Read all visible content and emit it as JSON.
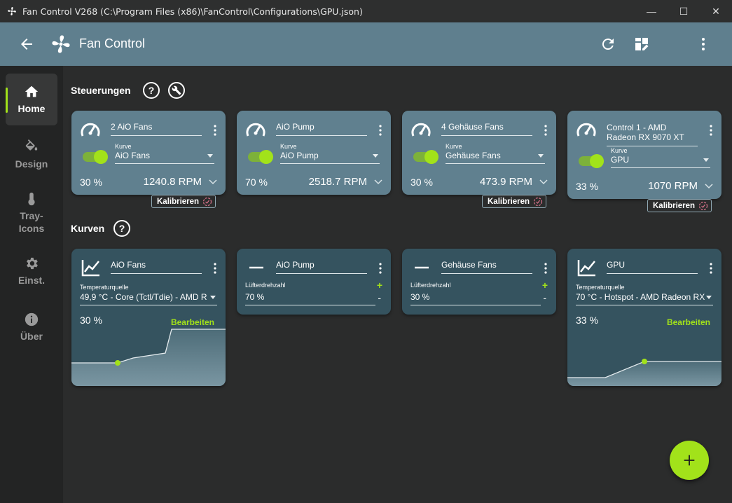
{
  "window": {
    "title": "Fan Control V268 (C:\\Program Files (x86)\\FanControl\\Configurations\\GPU.json)",
    "minimize": "—",
    "maximize": "☐",
    "close": "✕"
  },
  "appbar": {
    "title": "Fan Control",
    "icons": [
      "back-arrow-icon",
      "fan-logo-icon",
      "refresh-icon",
      "dashboard-edit-icon",
      "more-vertical-icon"
    ]
  },
  "sidebar": {
    "items": [
      {
        "label": "Home",
        "icon": "home-icon",
        "active": true
      },
      {
        "label": "Design",
        "icon": "paint-bucket-icon",
        "active": false
      },
      {
        "label": "Tray-\nIcons",
        "icon": "thermometer-icon",
        "active": false
      },
      {
        "label": "Einst.",
        "icon": "gear-icon",
        "active": false
      },
      {
        "label": "Über",
        "icon": "info-icon",
        "active": false
      }
    ]
  },
  "controls": {
    "title": "Steuerungen",
    "help": "?",
    "kurve_label": "Kurve",
    "calibrate_label": "Kalibrieren",
    "cards": [
      {
        "name": "2 AiO Fans",
        "curve": "AiO Fans",
        "percent": "30 %",
        "rpm": "1240.8 RPM",
        "enabled": true
      },
      {
        "name": "AiO Pump",
        "curve": "AiO Pump",
        "percent": "70 %",
        "rpm": "2518.7 RPM",
        "enabled": true
      },
      {
        "name": "4 Gehäuse Fans",
        "curve": "Gehäuse Fans",
        "percent": "30 %",
        "rpm": "473.9 RPM",
        "enabled": true
      },
      {
        "name": "Control 1 - AMD Radeon RX 9070 XT",
        "curve": "GPU",
        "percent": "33 %",
        "rpm": "1070 RPM",
        "enabled": true
      }
    ]
  },
  "curves": {
    "title": "Kurven",
    "help": "?",
    "temp_source_label": "Temperaturquelle",
    "speed_label": "Lüfterdrehzahl",
    "edit_label": "Bearbeiten",
    "plus": "+",
    "minus": "-",
    "cards": [
      {
        "name": "AiO Fans",
        "type": "graph",
        "source": "49,9 °C - Core (Tctl/Tdie) - AMD R",
        "percent": "30 %"
      },
      {
        "name": "AiO Pump",
        "type": "flat",
        "value": "70 %"
      },
      {
        "name": "Gehäuse Fans",
        "type": "flat",
        "value": "30 %"
      },
      {
        "name": "GPU",
        "type": "graph",
        "source": "70 °C - Hotspot - AMD Radeon RX",
        "percent": "33 %"
      }
    ]
  },
  "colors": {
    "accent": "#a2e21a",
    "card": "#60808f",
    "curve_card": "#35535f",
    "background": "#2b2c2c"
  },
  "fab": {
    "icon": "plus-icon"
  }
}
